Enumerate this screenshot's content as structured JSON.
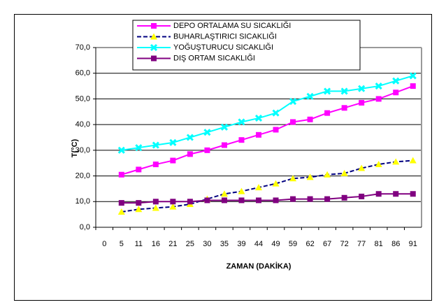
{
  "chart_data": {
    "type": "line",
    "y_label": "T(°C)",
    "x_label": "ZAMAN (DAKİKA)",
    "categories": [
      "0",
      "5",
      "11",
      "16",
      "21",
      "25",
      "30",
      "35",
      "39",
      "44",
      "49",
      "59",
      "62",
      "67",
      "72",
      "77",
      "81",
      "86",
      "91"
    ],
    "series": [
      {
        "name": "DEPO ORTALAMA SU SICAKLIĞI",
        "color": "#ff00ff",
        "marker": "square",
        "marker_color": "#ff00ff",
        "dash": false,
        "values": [
          null,
          20.5,
          22.5,
          24.5,
          26,
          28.5,
          30,
          32,
          34,
          36,
          38,
          41,
          42,
          44.5,
          46.5,
          48.5,
          50,
          52.5,
          55
        ]
      },
      {
        "name": "BUHARLAŞTIRICI SICAKLIĞI",
        "color": "#000080",
        "marker": "triangle",
        "marker_color": "#ffff00",
        "dash": true,
        "values": [
          null,
          6,
          7,
          7.5,
          8,
          9,
          11,
          13,
          14,
          15.5,
          17,
          19,
          19.5,
          20.5,
          21,
          23,
          24.5,
          25.5,
          26
        ]
      },
      {
        "name": "YOĞUŞTURUCU SICAKLIĞI",
        "color": "#00ffff",
        "marker": "x",
        "marker_color": "#00ffff",
        "dash": false,
        "values": [
          null,
          30,
          31,
          32,
          33,
          35,
          37,
          39,
          41,
          42.5,
          44.5,
          49,
          51,
          53,
          53,
          54,
          55,
          57,
          59
        ]
      },
      {
        "name": "DIŞ ORTAM SICAKLIĞI",
        "color": "#800080",
        "marker": "square",
        "marker_color": "#800080",
        "dash": false,
        "values": [
          null,
          9.5,
          9.5,
          10,
          10,
          10,
          10.5,
          10.5,
          10.5,
          10.5,
          10.5,
          11,
          11,
          11,
          11.5,
          12,
          13,
          13,
          13
        ]
      }
    ],
    "ylim": [
      0,
      70
    ],
    "yticks": [
      {
        "value": 0,
        "label": "0,0"
      },
      {
        "value": 10,
        "label": "10,0"
      },
      {
        "value": 20,
        "label": "20,0"
      },
      {
        "value": 30,
        "label": "30,0"
      },
      {
        "value": 40,
        "label": "40,0"
      },
      {
        "value": 50,
        "label": "50,0"
      },
      {
        "value": 60,
        "label": "60,0"
      },
      {
        "value": 70,
        "label": "70,0"
      }
    ],
    "grid": true,
    "legend": "top"
  }
}
